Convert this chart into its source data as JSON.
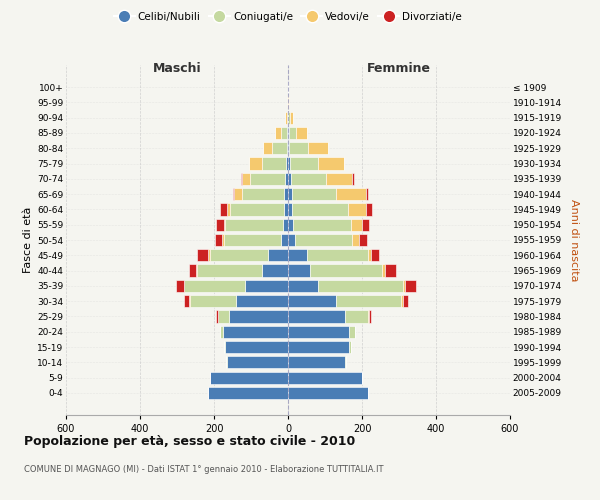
{
  "age_groups": [
    "0-4",
    "5-9",
    "10-14",
    "15-19",
    "20-24",
    "25-29",
    "30-34",
    "35-39",
    "40-44",
    "45-49",
    "50-54",
    "55-59",
    "60-64",
    "65-69",
    "70-74",
    "75-79",
    "80-84",
    "85-89",
    "90-94",
    "95-99",
    "100+"
  ],
  "birth_years": [
    "2005-2009",
    "2000-2004",
    "1995-1999",
    "1990-1994",
    "1985-1989",
    "1980-1984",
    "1975-1979",
    "1970-1974",
    "1965-1969",
    "1960-1964",
    "1955-1959",
    "1950-1954",
    "1945-1949",
    "1940-1944",
    "1935-1939",
    "1930-1934",
    "1925-1929",
    "1920-1924",
    "1915-1919",
    "1910-1914",
    "≤ 1909"
  ],
  "males": {
    "celibi": [
      215,
      210,
      165,
      170,
      175,
      160,
      140,
      115,
      70,
      55,
      18,
      14,
      12,
      10,
      8,
      5,
      3,
      2,
      0,
      0,
      0
    ],
    "coniugati": [
      0,
      0,
      2,
      4,
      10,
      30,
      125,
      165,
      175,
      155,
      155,
      155,
      145,
      115,
      95,
      65,
      40,
      18,
      3,
      1,
      0
    ],
    "vedovi": [
      0,
      0,
      0,
      0,
      0,
      0,
      2,
      2,
      3,
      5,
      5,
      5,
      8,
      20,
      20,
      35,
      25,
      15,
      4,
      2,
      0
    ],
    "divorziati": [
      0,
      0,
      0,
      0,
      0,
      5,
      15,
      20,
      20,
      30,
      18,
      20,
      20,
      5,
      5,
      0,
      0,
      0,
      0,
      0,
      0
    ]
  },
  "females": {
    "nubili": [
      215,
      200,
      155,
      165,
      165,
      155,
      130,
      80,
      60,
      50,
      18,
      14,
      12,
      10,
      8,
      5,
      3,
      2,
      0,
      0,
      0
    ],
    "coniugate": [
      0,
      0,
      2,
      5,
      15,
      60,
      175,
      230,
      195,
      165,
      155,
      155,
      150,
      120,
      95,
      75,
      50,
      20,
      5,
      1,
      0
    ],
    "vedove": [
      0,
      0,
      0,
      0,
      0,
      3,
      5,
      5,
      8,
      10,
      20,
      30,
      50,
      80,
      70,
      70,
      55,
      30,
      8,
      3,
      0
    ],
    "divorziate": [
      0,
      0,
      0,
      0,
      2,
      5,
      15,
      30,
      30,
      20,
      20,
      20,
      15,
      5,
      5,
      0,
      0,
      0,
      0,
      0,
      0
    ]
  },
  "colors": {
    "celibi": "#4a7db5",
    "coniugati": "#c5d9a0",
    "vedovi": "#f5c96e",
    "divorziati": "#cc2222"
  },
  "xlim": 600,
  "title": "Popolazione per età, sesso e stato civile - 2010",
  "subtitle": "COMUNE DI MAGNAGO (MI) - Dati ISTAT 1° gennaio 2010 - Elaborazione TUTTITALIA.IT",
  "xlabel_left": "Maschi",
  "xlabel_right": "Femmine",
  "ylabel_left": "Fasce di età",
  "ylabel_right": "Anni di nascita",
  "legend_labels": [
    "Celibi/Nubili",
    "Coniugati/e",
    "Vedovi/e",
    "Divorziati/e"
  ],
  "bg_color": "#f5f5f0",
  "grid_color": "#cccccc"
}
